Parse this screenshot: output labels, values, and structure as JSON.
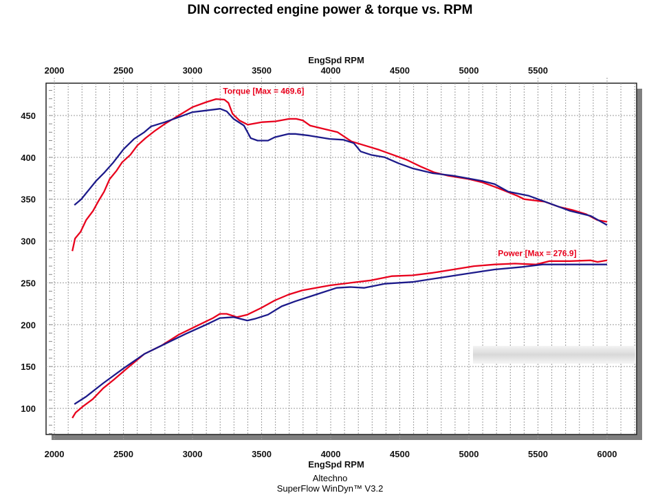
{
  "chart_data": {
    "type": "line",
    "title": "DIN corrected engine power & torque vs. RPM",
    "xlabel": "EngSpd RPM",
    "xlabel_top": "EngSpd RPM",
    "ylabel": "",
    "xlim": [
      1940,
      6214
    ],
    "ylim": [
      68.8,
      488.6
    ],
    "x_ticks": [
      2000,
      2500,
      3000,
      3500,
      4000,
      4500,
      5000,
      5500,
      6000
    ],
    "x_ticks_top": [
      2000,
      2500,
      3000,
      3500,
      4000,
      4500,
      5000,
      5500
    ],
    "y_ticks": [
      100,
      150,
      200,
      250,
      300,
      350,
      400,
      450
    ],
    "grid": true,
    "annotations": [
      {
        "text": "Torque [Max = 469.6]",
        "x": 3220,
        "y": 476,
        "color": "#e8001c"
      },
      {
        "text": "Power  [Max = 276.9]",
        "x": 5210,
        "y": 282,
        "color": "#e8001c"
      }
    ],
    "series": [
      {
        "name": "Torque (red)",
        "color": "#e8001c",
        "points": [
          [
            2130,
            288
          ],
          [
            2150,
            303
          ],
          [
            2190,
            311
          ],
          [
            2230,
            325
          ],
          [
            2280,
            336
          ],
          [
            2320,
            348
          ],
          [
            2360,
            359
          ],
          [
            2400,
            374
          ],
          [
            2450,
            384
          ],
          [
            2490,
            394
          ],
          [
            2550,
            403
          ],
          [
            2600,
            414
          ],
          [
            2660,
            423
          ],
          [
            2730,
            432
          ],
          [
            2800,
            440
          ],
          [
            2880,
            448
          ],
          [
            2950,
            455
          ],
          [
            3000,
            460
          ],
          [
            3100,
            466
          ],
          [
            3170,
            469.6
          ],
          [
            3230,
            469
          ],
          [
            3260,
            465
          ],
          [
            3290,
            452
          ],
          [
            3340,
            444
          ],
          [
            3400,
            439
          ],
          [
            3500,
            442
          ],
          [
            3600,
            443
          ],
          [
            3700,
            446
          ],
          [
            3750,
            446
          ],
          [
            3800,
            444
          ],
          [
            3850,
            438
          ],
          [
            3950,
            434
          ],
          [
            4050,
            430
          ],
          [
            4150,
            419
          ],
          [
            4250,
            414
          ],
          [
            4350,
            409
          ],
          [
            4450,
            403
          ],
          [
            4550,
            397
          ],
          [
            4650,
            389
          ],
          [
            4750,
            382
          ],
          [
            4850,
            378
          ],
          [
            5000,
            374
          ],
          [
            5100,
            370
          ],
          [
            5200,
            364
          ],
          [
            5350,
            354
          ],
          [
            5400,
            350
          ],
          [
            5550,
            347
          ],
          [
            5650,
            341
          ],
          [
            5750,
            337
          ],
          [
            5850,
            332
          ],
          [
            5930,
            325
          ],
          [
            6000,
            323
          ]
        ]
      },
      {
        "name": "Torque (blue)",
        "color": "#1c1a8a",
        "points": [
          [
            2145,
            343
          ],
          [
            2195,
            350
          ],
          [
            2234,
            358
          ],
          [
            2303,
            372
          ],
          [
            2363,
            382
          ],
          [
            2427,
            394
          ],
          [
            2502,
            410
          ],
          [
            2577,
            422
          ],
          [
            2651,
            430
          ],
          [
            2701,
            437
          ],
          [
            2800,
            442
          ],
          [
            2900,
            448
          ],
          [
            3000,
            454
          ],
          [
            3100,
            456
          ],
          [
            3200,
            458
          ],
          [
            3247,
            455
          ],
          [
            3297,
            446
          ],
          [
            3372,
            438
          ],
          [
            3421,
            423
          ],
          [
            3471,
            420
          ],
          [
            3546,
            420
          ],
          [
            3595,
            424
          ],
          [
            3695,
            428
          ],
          [
            3744,
            428
          ],
          [
            3844,
            426
          ],
          [
            3993,
            422
          ],
          [
            4092,
            421
          ],
          [
            4167,
            417
          ],
          [
            4217,
            407
          ],
          [
            4291,
            403
          ],
          [
            4391,
            400
          ],
          [
            4490,
            393
          ],
          [
            4590,
            387
          ],
          [
            4739,
            381
          ],
          [
            4888,
            378
          ],
          [
            5087,
            372
          ],
          [
            5186,
            368
          ],
          [
            5285,
            359
          ],
          [
            5434,
            354
          ],
          [
            5584,
            345
          ],
          [
            5733,
            336
          ],
          [
            5882,
            330
          ],
          [
            6000,
            319
          ]
        ]
      },
      {
        "name": "Power (red)",
        "color": "#e8001c",
        "points": [
          [
            2130,
            88.5
          ],
          [
            2154,
            95
          ],
          [
            2204,
            102
          ],
          [
            2278,
            111
          ],
          [
            2353,
            124
          ],
          [
            2428,
            134
          ],
          [
            2527,
            148
          ],
          [
            2651,
            165
          ],
          [
            2775,
            175
          ],
          [
            2900,
            188
          ],
          [
            3024,
            198
          ],
          [
            3148,
            208
          ],
          [
            3198,
            213
          ],
          [
            3247,
            213
          ],
          [
            3322,
            209
          ],
          [
            3397,
            212
          ],
          [
            3496,
            220
          ],
          [
            3595,
            229
          ],
          [
            3695,
            236
          ],
          [
            3794,
            241
          ],
          [
            3893,
            244
          ],
          [
            3993,
            247
          ],
          [
            4142,
            250
          ],
          [
            4291,
            253
          ],
          [
            4440,
            258
          ],
          [
            4590,
            259
          ],
          [
            4739,
            262
          ],
          [
            4888,
            266
          ],
          [
            5037,
            270
          ],
          [
            5186,
            272
          ],
          [
            5335,
            273
          ],
          [
            5484,
            272
          ],
          [
            5584,
            276
          ],
          [
            5733,
            276
          ],
          [
            5882,
            276.9
          ],
          [
            5931,
            275
          ],
          [
            6000,
            277
          ]
        ]
      },
      {
        "name": "Power (blue)",
        "color": "#1c1a8a",
        "points": [
          [
            2145,
            105
          ],
          [
            2229,
            114
          ],
          [
            2353,
            130
          ],
          [
            2502,
            148
          ],
          [
            2651,
            165
          ],
          [
            2800,
            177
          ],
          [
            2950,
            189
          ],
          [
            3098,
            200
          ],
          [
            3198,
            208
          ],
          [
            3297,
            209
          ],
          [
            3397,
            205
          ],
          [
            3450,
            207
          ],
          [
            3546,
            212
          ],
          [
            3645,
            222
          ],
          [
            3744,
            228
          ],
          [
            3893,
            236
          ],
          [
            4043,
            244
          ],
          [
            4142,
            245
          ],
          [
            4241,
            244
          ],
          [
            4391,
            249
          ],
          [
            4590,
            251
          ],
          [
            4789,
            256
          ],
          [
            4987,
            261
          ],
          [
            5186,
            266
          ],
          [
            5385,
            269
          ],
          [
            5534,
            272
          ],
          [
            5733,
            272
          ],
          [
            5882,
            272
          ],
          [
            6000,
            272
          ]
        ]
      }
    ]
  },
  "footer": {
    "line1": "Altechno",
    "line2": "SuperFlow WinDyn™ V3.2"
  }
}
